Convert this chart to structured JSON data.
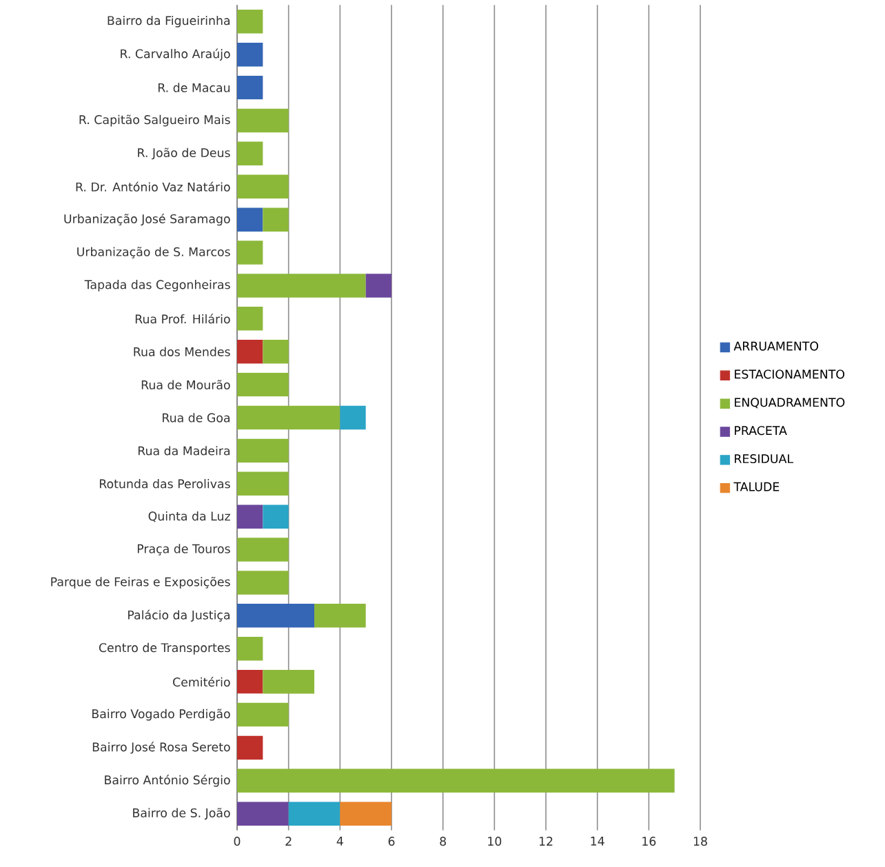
{
  "chart_data": {
    "type": "bar",
    "orientation": "horizontal",
    "stacked": true,
    "grid": "x",
    "legend": "right",
    "categories": [
      "Bairro da Figueirinha",
      "R. Carvalho Araújo",
      "R. de Macau",
      "R. Capitão Salgueiro Mais",
      "R. João de Deus",
      "R. Dr. António Vaz Natário",
      "Urbanização José Saramago",
      "Urbanização de S. Marcos",
      "Tapada das Cegonheiras",
      "Rua Prof. Hilário",
      "Rua dos Mendes",
      "Rua de Mourão",
      "Rua de Goa",
      "Rua da Madeira",
      "Rotunda das Perolivas",
      "Quinta da Luz",
      "Praça de Touros",
      "Parque de Feiras e Exposições",
      "Palácio da Justiça",
      "Centro de Transportes",
      "Cemitério",
      "Bairro Vogado Perdigão",
      "Bairro José Rosa Sereto",
      "Bairro António Sérgio",
      "Bairro de S. João"
    ],
    "xlim": [
      0,
      18
    ],
    "xticks": [
      0,
      2,
      4,
      6,
      8,
      10,
      12,
      14,
      16,
      18
    ],
    "series": [
      {
        "name": "ARRUAMENTO",
        "color": "#3566b5",
        "values": [
          null,
          1,
          1,
          null,
          null,
          null,
          1,
          null,
          null,
          null,
          null,
          null,
          null,
          null,
          null,
          null,
          null,
          null,
          3,
          null,
          null,
          null,
          null,
          null,
          null
        ]
      },
      {
        "name": "ESTACIONAMENTO",
        "color": "#c0302b",
        "values": [
          null,
          null,
          null,
          null,
          null,
          null,
          null,
          null,
          null,
          null,
          1,
          null,
          null,
          null,
          null,
          null,
          null,
          null,
          null,
          null,
          1,
          null,
          1,
          null,
          null
        ]
      },
      {
        "name": "ENQUADRAMENTO",
        "color": "#8cb83a",
        "values": [
          1,
          null,
          null,
          2,
          1,
          2,
          1,
          1,
          5,
          1,
          1,
          2,
          4,
          2,
          2,
          null,
          2,
          2,
          2,
          1,
          2,
          2,
          null,
          17,
          null
        ]
      },
      {
        "name": "PRACETA",
        "color": "#6b479c",
        "values": [
          null,
          null,
          null,
          null,
          null,
          null,
          null,
          null,
          1,
          null,
          null,
          null,
          null,
          null,
          null,
          1,
          null,
          null,
          null,
          null,
          null,
          null,
          null,
          null,
          2
        ]
      },
      {
        "name": "RESIDUAL",
        "color": "#2aa5c6",
        "values": [
          null,
          null,
          null,
          null,
          null,
          null,
          null,
          null,
          null,
          null,
          null,
          null,
          1,
          null,
          null,
          1,
          null,
          null,
          null,
          null,
          null,
          null,
          null,
          null,
          2
        ]
      },
      {
        "name": "TALUDE",
        "color": "#e8862e",
        "values": [
          null,
          null,
          null,
          null,
          null,
          null,
          null,
          null,
          null,
          null,
          null,
          null,
          null,
          null,
          null,
          null,
          null,
          null,
          null,
          null,
          null,
          null,
          null,
          null,
          2
        ]
      }
    ]
  }
}
